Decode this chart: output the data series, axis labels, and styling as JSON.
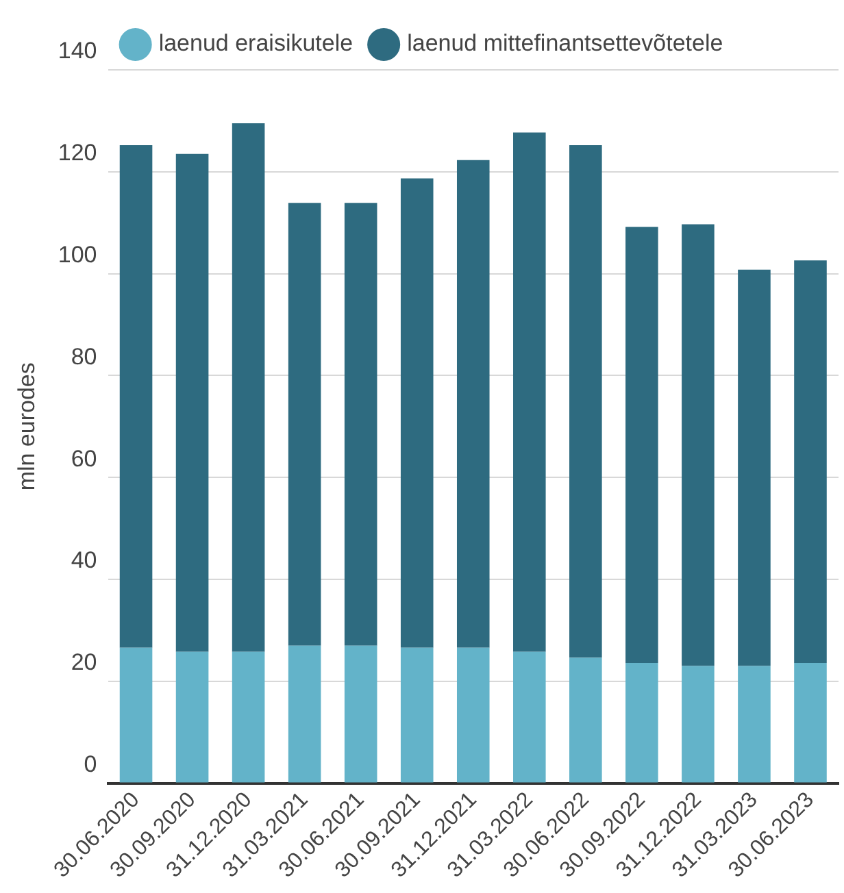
{
  "chart_data": {
    "type": "bar",
    "stacked": true,
    "ylabel": "mln eurodes",
    "categories": [
      "30.06.2020",
      "30.09.2020",
      "31.12.2020",
      "31.03.2021",
      "30.06.2021",
      "30.09.2021",
      "31.12.2021",
      "31.03.2022",
      "30.06.2022",
      "30.09.2022",
      "31.12.2022",
      "31.03.2023",
      "30.06.2023"
    ],
    "series": [
      {
        "name": "laenud eraisikutele",
        "color": "#63b3c9",
        "values": [
          26.6,
          25.8,
          25.8,
          27.0,
          27.0,
          26.6,
          26.6,
          25.8,
          24.6,
          23.6,
          23.0,
          23.0,
          23.6
        ]
      },
      {
        "name": "laenud mittefinantsettevõtetele",
        "color": "#2e6b80",
        "values": [
          98.6,
          97.7,
          103.7,
          86.9,
          86.9,
          92.1,
          95.7,
          101.9,
          100.6,
          85.6,
          86.7,
          77.8,
          79.0
        ]
      }
    ],
    "ylim": [
      0,
      140
    ],
    "yticks": [
      0,
      20,
      40,
      60,
      80,
      100,
      120,
      140
    ],
    "grid": "y",
    "legend": "top"
  }
}
